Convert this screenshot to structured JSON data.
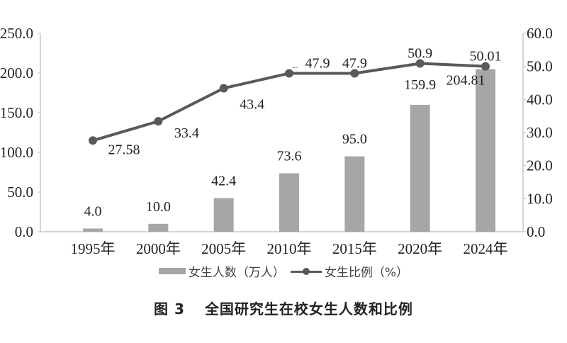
{
  "chart_data": {
    "type": "bar+line",
    "categories": [
      "1995年",
      "2000年",
      "2005年",
      "2010年",
      "2015年",
      "2020年",
      "2024年"
    ],
    "series": [
      {
        "name": "女生人数（万人）",
        "type": "bar",
        "axis": "left",
        "values": [
          4.0,
          10.0,
          42.4,
          73.6,
          95.0,
          159.9,
          204.81
        ],
        "labels": [
          "4.0",
          "10.0",
          "42.4",
          "73.6",
          "95.0",
          "159.9",
          "204.81"
        ],
        "color": "#a6a6a6"
      },
      {
        "name": "女生比例（%）",
        "type": "line",
        "axis": "right",
        "values": [
          27.58,
          33.4,
          43.4,
          47.9,
          47.9,
          50.9,
          50.01
        ],
        "labels": [
          "27.58",
          "33.4",
          "43.4",
          "47.9",
          "47.9",
          "50.9",
          "50.01"
        ],
        "color": "#595959"
      }
    ],
    "left_axis": {
      "ylim": [
        0,
        250
      ],
      "ticks": [
        "0.0",
        "50.0",
        "100.0",
        "150.0",
        "200.0",
        "250.0"
      ]
    },
    "right_axis": {
      "ylim": [
        0,
        60
      ],
      "ticks": [
        "0.0",
        "10.0",
        "20.0",
        "30.0",
        "40.0",
        "50.0",
        "60.0"
      ]
    },
    "grid": false,
    "legend_position": "bottom"
  },
  "legend": {
    "bar": "女生人数（万人）",
    "line": "女生比例（%）"
  },
  "caption": {
    "number": "图 3",
    "title": "全国研究生在校女生人数和比例"
  }
}
